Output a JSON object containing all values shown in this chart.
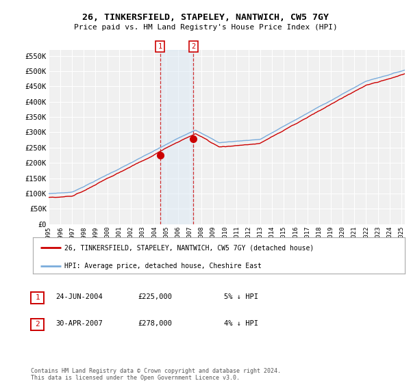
{
  "title": "26, TINKERSFIELD, STAPELEY, NANTWICH, CW5 7GY",
  "subtitle": "Price paid vs. HM Land Registry's House Price Index (HPI)",
  "ylim": [
    0,
    570000
  ],
  "yticks": [
    0,
    50000,
    100000,
    150000,
    200000,
    250000,
    300000,
    350000,
    400000,
    450000,
    500000,
    550000
  ],
  "ytick_labels": [
    "£0",
    "£50K",
    "£100K",
    "£150K",
    "£200K",
    "£250K",
    "£300K",
    "£350K",
    "£400K",
    "£450K",
    "£500K",
    "£550K"
  ],
  "legend_line1": "26, TINKERSFIELD, STAPELEY, NANTWICH, CW5 7GY (detached house)",
  "legend_line2": "HPI: Average price, detached house, Cheshire East",
  "transaction1_label": "1",
  "transaction1_date": "24-JUN-2004",
  "transaction1_price": "£225,000",
  "transaction1_hpi": "5% ↓ HPI",
  "transaction2_label": "2",
  "transaction2_date": "30-APR-2007",
  "transaction2_price": "£278,000",
  "transaction2_hpi": "4% ↓ HPI",
  "footer": "Contains HM Land Registry data © Crown copyright and database right 2024.\nThis data is licensed under the Open Government Licence v3.0.",
  "bg_color": "#ffffff",
  "plot_bg_color": "#f0f0f0",
  "grid_color": "#ffffff",
  "line_color_red": "#cc0000",
  "line_color_blue": "#7aacdc",
  "highlight_color": "#d8e8f5",
  "transaction1_x": 2004.48,
  "transaction2_x": 2007.33,
  "transaction1_y": 225000,
  "transaction2_y": 278000,
  "xlim_start": 1995,
  "xlim_end": 2025.3
}
